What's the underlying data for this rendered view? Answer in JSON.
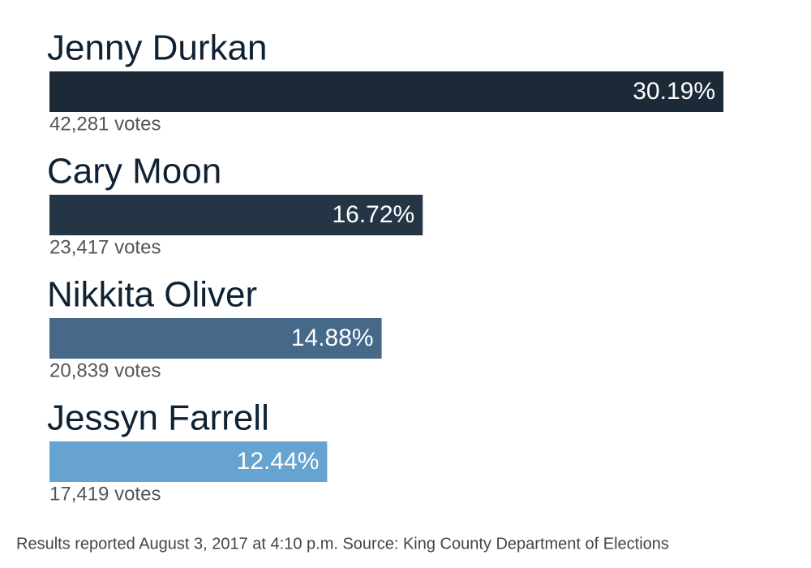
{
  "chart_data": {
    "type": "bar",
    "orientation": "horizontal",
    "categories": [
      "Jenny Durkan",
      "Cary Moon",
      "Nikkita Oliver",
      "Jessyn Farrell"
    ],
    "values": [
      30.19,
      16.72,
      14.88,
      12.44
    ],
    "value_labels": [
      "30.19%",
      "16.72%",
      "14.88%",
      "12.44%"
    ],
    "vote_labels": [
      "42,281 votes",
      "23,417 votes",
      "20,839 votes",
      "17,419 votes"
    ],
    "colors": [
      "#1c2a38",
      "#243646",
      "#46698a",
      "#67a3d0"
    ],
    "note": "Results reported August 3, 2017 at 4:10 p.m. Source: King County Department of Elections"
  }
}
